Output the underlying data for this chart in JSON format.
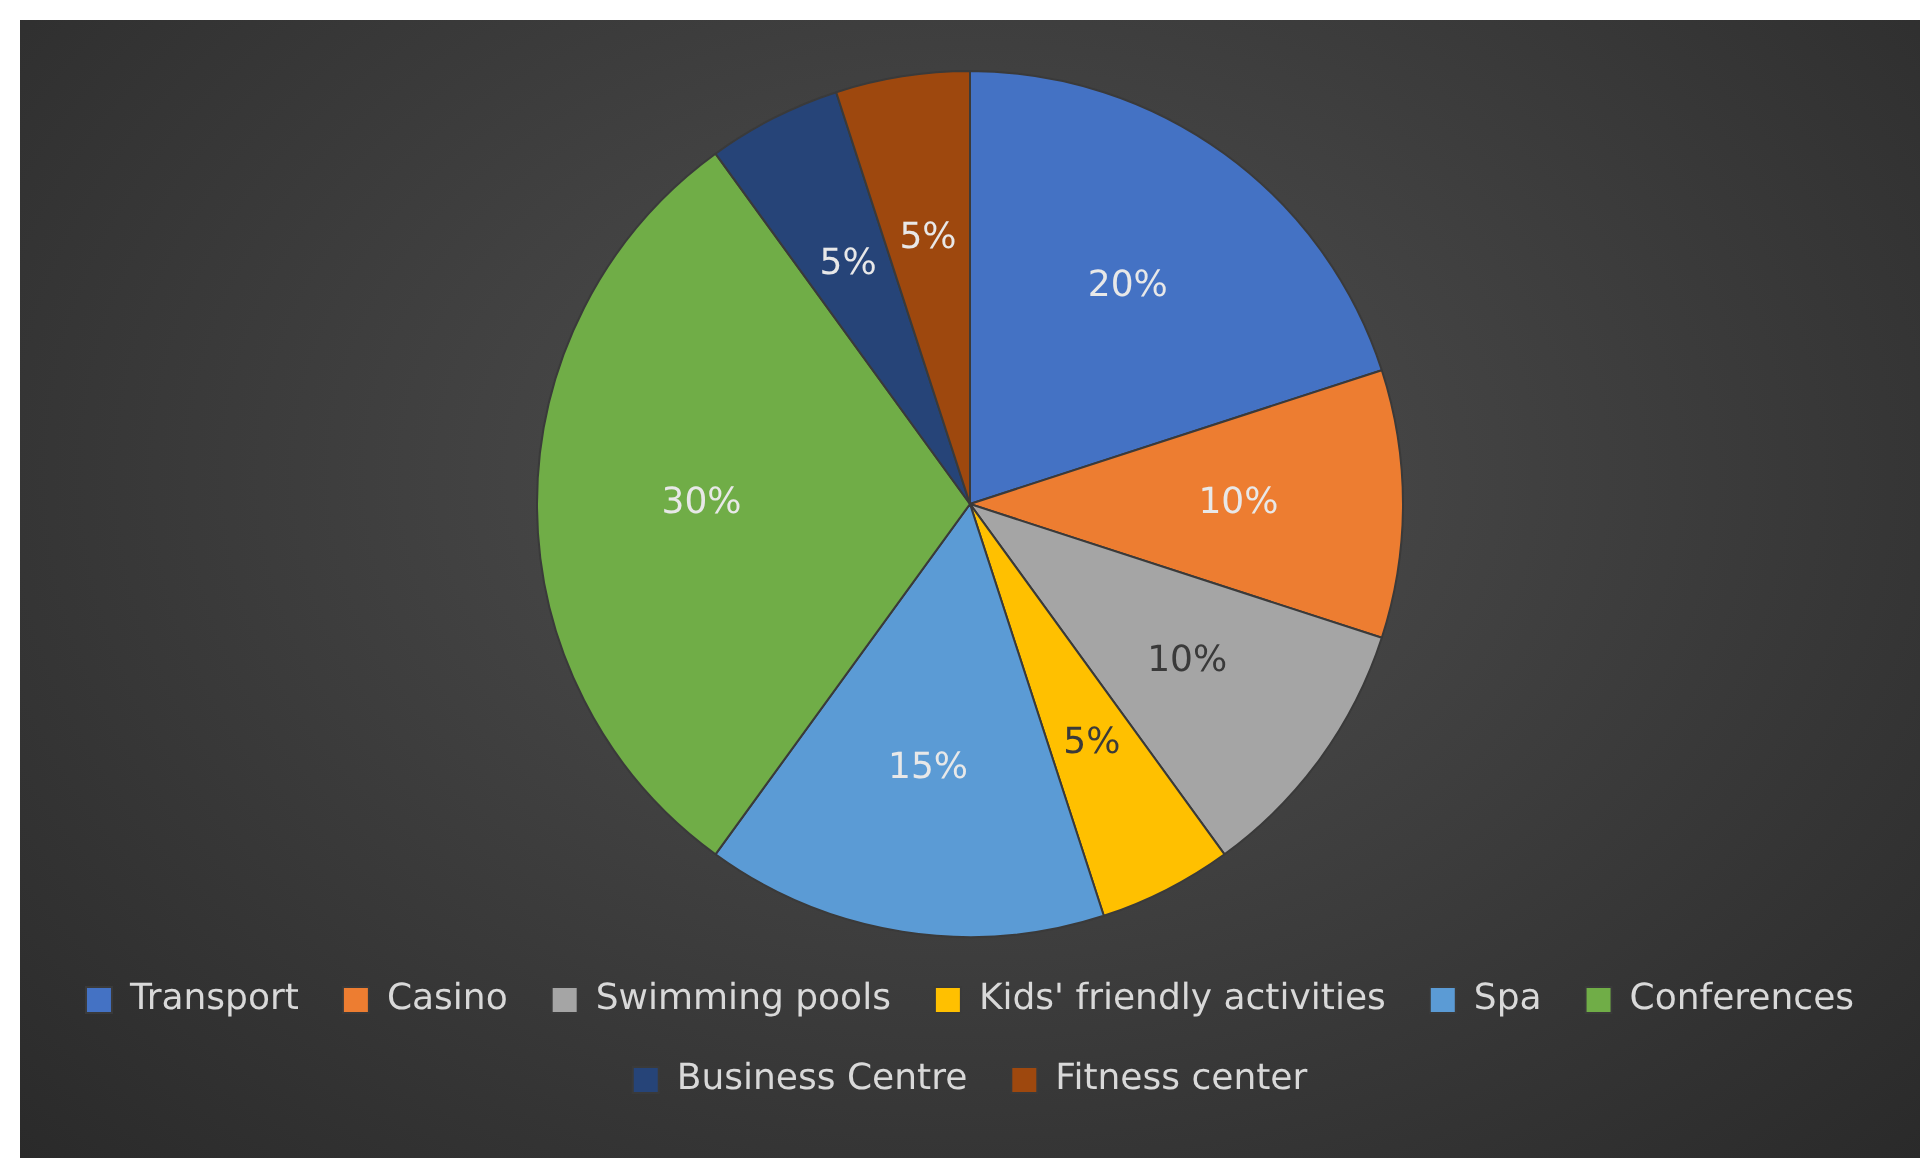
{
  "chart_data": {
    "type": "pie",
    "categories": [
      "Transport",
      "Casino",
      "Swimming pools",
      "Kids' friendly activities",
      "Spa",
      "Conferences",
      "Business Centre",
      "Fitness center"
    ],
    "values": [
      20,
      10,
      10,
      5,
      15,
      30,
      5,
      5
    ],
    "colors": [
      "#4472c4",
      "#ed7d31",
      "#a5a5a5",
      "#ffc000",
      "#5b9bd5",
      "#70ad47",
      "#264478",
      "#9e480e"
    ],
    "value_labels": [
      "20%",
      "10%",
      "10%",
      "5%",
      "15%",
      "30%",
      "5%",
      "5%"
    ],
    "legend": "bottom"
  }
}
